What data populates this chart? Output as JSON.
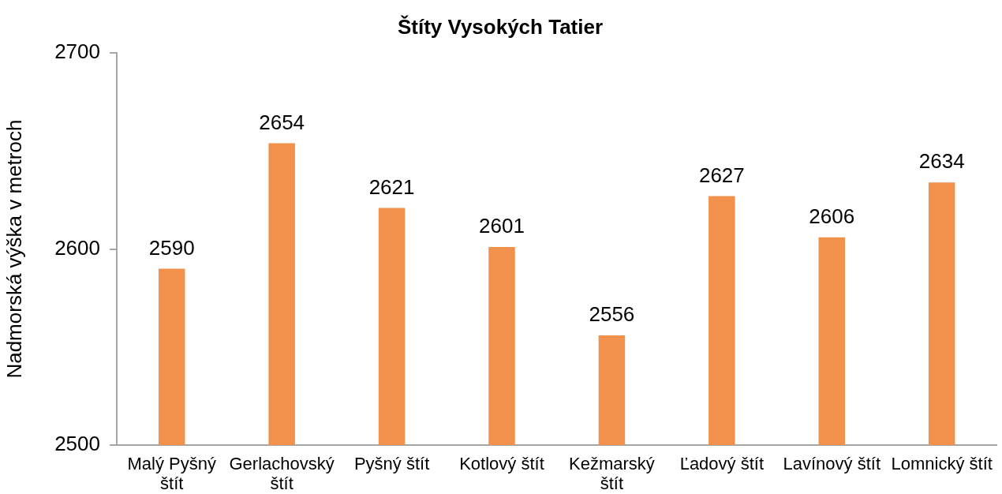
{
  "chart_data": {
    "type": "bar",
    "title": "Štíty Vysokých Tatier",
    "ylabel": "Nadmorská výška v metroch",
    "categories": [
      "Malý Pyšný štít",
      "Gerlachovský štít",
      "Pyšný štít",
      "Kotlový štít",
      "Kežmarský štít",
      "Ľadový štít",
      "Lavínový štít",
      "Lomnický štít"
    ],
    "values": [
      2590,
      2654,
      2621,
      2601,
      2556,
      2627,
      2606,
      2634
    ],
    "color": "#f2914b",
    "ylim": [
      2500,
      2700
    ],
    "yticks": [
      2500,
      2600,
      2700
    ],
    "grid": false,
    "data_labels": true
  }
}
